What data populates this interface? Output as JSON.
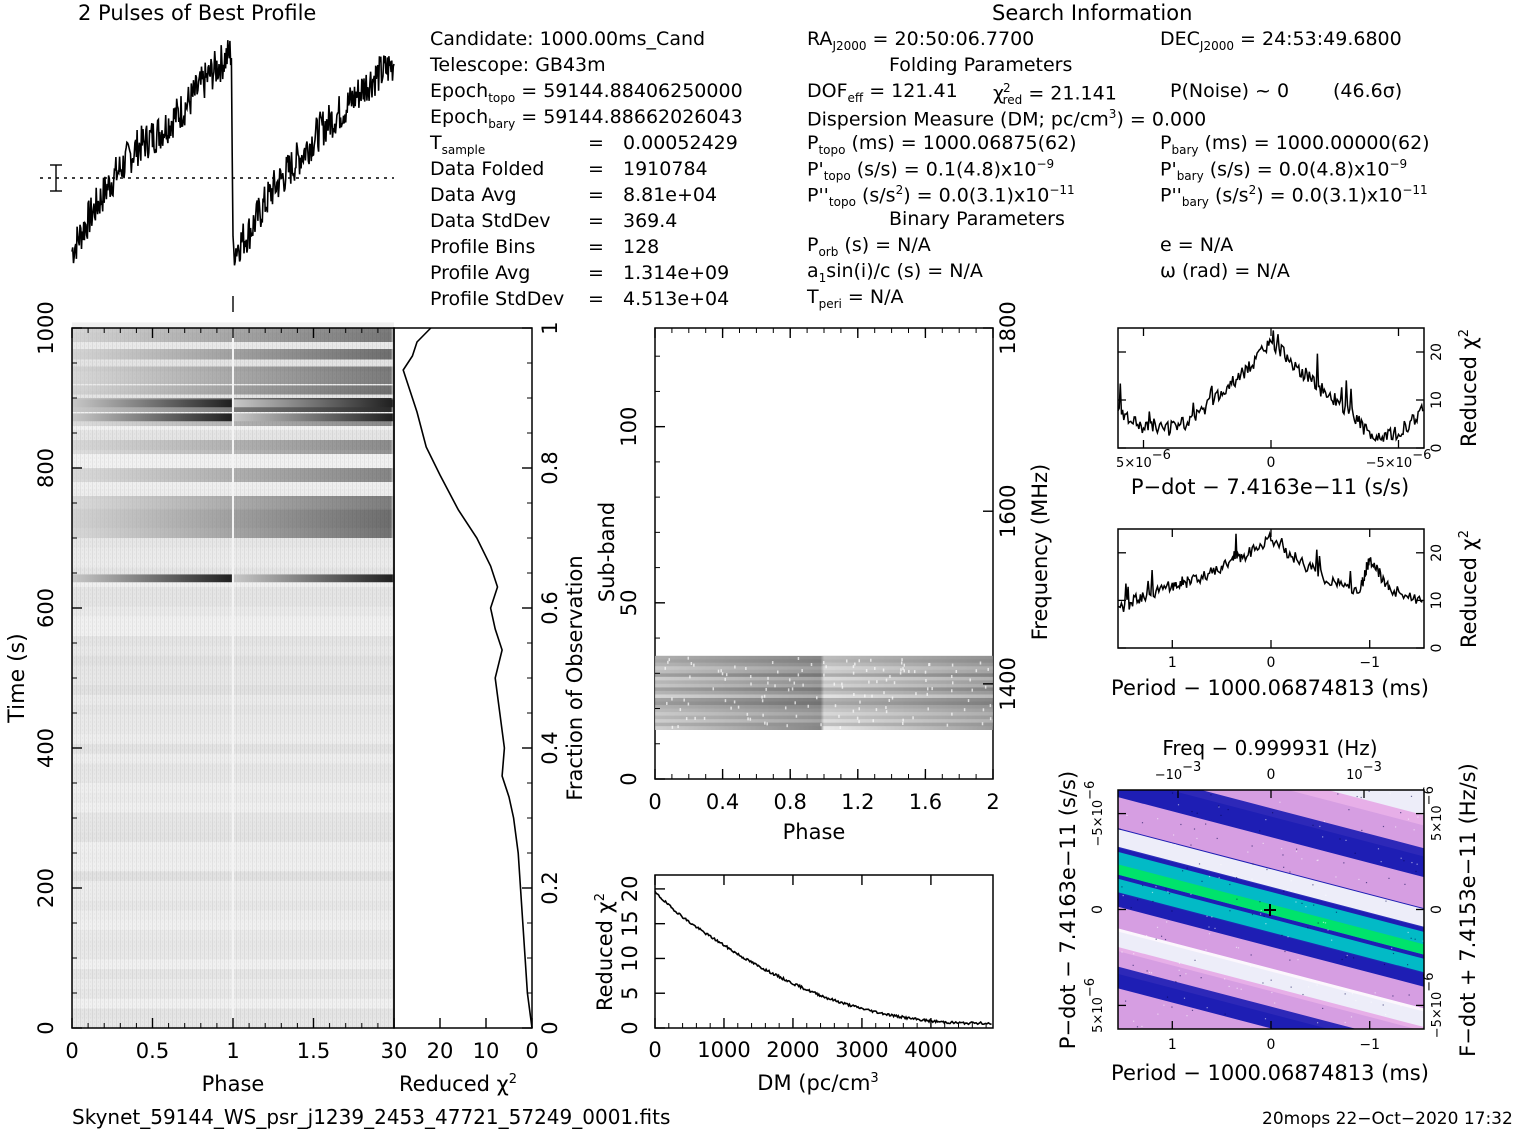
{
  "titles": {
    "profile_title": "2 Pulses of Best Profile",
    "search_info": "Search Information",
    "folding_params": "Folding Parameters",
    "binary_params": "Binary Parameters"
  },
  "candidate": {
    "candidate": "Candidate:  1000.00ms_Cand",
    "telescope": "Telescope:  GB43m",
    "epoch_topo_label": "Epoch",
    "epoch_topo_sub": "topo",
    "epoch_topo_val": " = 59144.88406250000",
    "epoch_bary_label": "Epoch",
    "epoch_bary_sub": "bary",
    "epoch_bary_val": " = 59144.88662026043",
    "rows": [
      {
        "label": "T",
        "sub": "sample",
        "eq": "=",
        "value": "0.00052429"
      },
      {
        "label": "Data Folded",
        "sub": "",
        "eq": "=",
        "value": "1910784"
      },
      {
        "label": "Data Avg",
        "sub": "",
        "eq": "=",
        "value": "8.81e+04"
      },
      {
        "label": "Data StdDev",
        "sub": "",
        "eq": "=",
        "value": "369.4"
      },
      {
        "label": "Profile Bins",
        "sub": "",
        "eq": "=",
        "value": "128"
      },
      {
        "label": "Profile Avg",
        "sub": "",
        "eq": "=",
        "value": "1.314e+09"
      },
      {
        "label": "Profile StdDev",
        "sub": "",
        "eq": "=",
        "value": "4.513e+04"
      }
    ]
  },
  "search": {
    "ra": "RA",
    "ra_sub": "J2000",
    "ra_val": " = 20:50:06.7700",
    "dec": "DEC",
    "dec_sub": "J2000",
    "dec_val": " = 24:53:49.6800",
    "dof": "DOF",
    "dof_sub": "eff",
    "dof_val": " = 121.41",
    "chi": "χ",
    "chi_sup": "2",
    "chi_sub": "red",
    "chi_val": " = 21.141",
    "pnoise": "P(Noise) ~ 0",
    "sigma": "(46.6σ)",
    "dm_line": "Dispersion Measure (DM; pc/cm",
    "dm_sup": "3",
    "dm_val": ") = 0.000",
    "ptopo": "P",
    "ptopo_sub": "topo",
    "ptopo_val": " (ms) =  1000.06875(62)",
    "pbary": "P",
    "pbary_sub": "bary",
    "pbary_val": " (ms) =  1000.00000(62)",
    "pdtopo": "P'",
    "pdtopo_sub": "topo",
    "pdtopo_val": " (s/s) =  0.1(4.8)x10",
    "pdtopo_exp": "−9",
    "pdbary": "P'",
    "pdbary_sub": "bary",
    "pdbary_val": " (s/s) = 0.0(4.8)x10",
    "pdbary_exp": "−9",
    "pddtopo": "P''",
    "pddtopo_sub": "topo",
    "pddtopo_val": " (s/s",
    "pddtopo_sup": "2",
    "pddtopo_val2": ") = 0.0(3.1)x10",
    "pddtopo_exp": "−11",
    "pddbary": "P''",
    "pddbary_sub": "bary",
    "pddbary_val": " (s/s",
    "pddbary_sup": "2",
    "pddbary_val2": ") = 0.0(3.1)x10",
    "pddbary_exp": "−11",
    "porb": "P",
    "porb_sub": "orb",
    "porb_val": " (s) = N/A",
    "ecc": "e = N/A",
    "a1": "a",
    "a1_sub": "1",
    "a1_val": "sin(i)/c (s) = N/A",
    "omega": "ω (rad) = N/A",
    "tperi": "T",
    "tperi_sub": "peri",
    "tperi_val": " = N/A"
  },
  "footer": {
    "filename": "Skynet_59144_WS_psr_j1239_2453_47721_57249_0001.fits",
    "stamp": "20mops 22−Oct−2020 17:32"
  },
  "chart_data": [
    {
      "id": "profile",
      "type": "line",
      "title": "2 Pulses of Best Profile",
      "xlim": [
        0,
        2
      ],
      "shape": "sawtooth rising over each pulse, sharp drop at phase 1",
      "points": [
        [
          0.0,
          0.12
        ],
        [
          0.1,
          0.25
        ],
        [
          0.25,
          0.42
        ],
        [
          0.4,
          0.55
        ],
        [
          0.55,
          0.62
        ],
        [
          0.7,
          0.72
        ],
        [
          0.85,
          0.85
        ],
        [
          0.99,
          0.95
        ],
        [
          1.0,
          0.12
        ],
        [
          1.1,
          0.2
        ],
        [
          1.25,
          0.38
        ],
        [
          1.4,
          0.5
        ],
        [
          1.55,
          0.63
        ],
        [
          1.7,
          0.72
        ],
        [
          1.85,
          0.83
        ],
        [
          2.0,
          0.9
        ]
      ]
    },
    {
      "id": "time-phase",
      "type": "heatmap",
      "xlabel": "Phase",
      "ylabel": "Time (s)",
      "xlim": [
        0,
        2
      ],
      "ylim": [
        0,
        1000
      ],
      "x_ticks": [
        "0",
        "0.5",
        "1",
        "1.5"
      ],
      "y_ticks": [
        "0",
        "200",
        "400",
        "600",
        "800",
        "1000"
      ],
      "dark_bands_time": [
        640,
        870,
        890
      ]
    },
    {
      "id": "time-chi2",
      "type": "line",
      "xlabel": "Reduced χ",
      "xlabel_sup": "2",
      "ylabel": "Fraction of Observation",
      "xlim": [
        30,
        0
      ],
      "ylim": [
        0,
        1
      ],
      "x_ticks": [
        "30",
        "20",
        "10",
        "0"
      ],
      "y_ticks": [
        "0",
        "0.2",
        "0.4",
        "0.6",
        "0.8",
        "1"
      ],
      "points": [
        [
          0,
          0
        ],
        [
          1,
          0.05
        ],
        [
          1.5,
          0.1
        ],
        [
          2,
          0.15
        ],
        [
          2.5,
          0.2
        ],
        [
          3,
          0.25
        ],
        [
          4,
          0.3
        ],
        [
          5,
          0.33
        ],
        [
          6.5,
          0.36
        ],
        [
          6,
          0.4
        ],
        [
          7,
          0.45
        ],
        [
          8,
          0.5
        ],
        [
          6.5,
          0.54
        ],
        [
          8,
          0.57
        ],
        [
          9,
          0.6
        ],
        [
          7.5,
          0.63
        ],
        [
          9,
          0.66
        ],
        [
          12,
          0.7
        ],
        [
          16,
          0.74
        ],
        [
          20,
          0.79
        ],
        [
          23,
          0.83
        ],
        [
          25,
          0.88
        ],
        [
          27,
          0.92
        ],
        [
          28,
          0.94
        ],
        [
          26,
          0.96
        ],
        [
          25,
          0.98
        ],
        [
          22,
          1.0
        ]
      ]
    },
    {
      "id": "subband-phase",
      "type": "heatmap",
      "xlabel": "Phase",
      "ylabel": "Sub-band",
      "y2label": "Frequency (MHz)",
      "xlim": [
        0,
        2
      ],
      "ylim": [
        0,
        128
      ],
      "x_ticks": [
        "0",
        "0.4",
        "0.8",
        "1.2",
        "1.6",
        "2"
      ],
      "y_ticks": [
        "0",
        "50",
        "100"
      ],
      "y2_ticks": [
        "1400",
        "1600",
        "1800"
      ],
      "occupied_subbands": [
        15,
        35
      ]
    },
    {
      "id": "dm-chi2",
      "type": "line",
      "xlabel": "DM (pc/cm",
      "xlabel_sup": "3",
      "ylabel": "Reduced χ",
      "ylabel_sup": "2",
      "xlim": [
        0,
        4900
      ],
      "ylim": [
        0,
        22
      ],
      "x_ticks": [
        "0",
        "1000",
        "2000",
        "3000",
        "4000"
      ],
      "y_ticks": [
        "0",
        "5",
        "10",
        "15",
        "20"
      ],
      "x": [
        0,
        250,
        500,
        750,
        1000,
        1250,
        1500,
        1750,
        2000,
        2250,
        2500,
        2750,
        3000,
        3250,
        3500,
        3750,
        4000,
        4250,
        4500,
        4900
      ],
      "y": [
        19.5,
        17.2,
        15.2,
        13.5,
        11.9,
        10.3,
        8.9,
        7.6,
        6.4,
        5.3,
        4.3,
        3.5,
        2.8,
        2.2,
        1.7,
        1.3,
        1.0,
        0.8,
        0.7,
        0.7
      ]
    },
    {
      "id": "pdot-chi2",
      "type": "line",
      "xlabel": "P−dot − 7.4163e−11 (s/s)",
      "ylabel": "Reduced χ",
      "ylabel_sup": "2",
      "xlim": [
        6e-06,
        -6e-06
      ],
      "ylim": [
        0,
        25
      ],
      "x_ticks": [
        "5×10",
        "0",
        "−5×10"
      ],
      "x_tick_exp": "−6",
      "y_ticks": [
        "0",
        "10",
        "20"
      ],
      "x": [
        6e-06,
        5e-06,
        4e-06,
        3e-06,
        2e-06,
        1e-06,
        0,
        -1e-06,
        -2e-06,
        -3e-06,
        -4e-06,
        -5e-06,
        -6e-06
      ],
      "y": [
        8,
        4,
        4,
        6,
        11,
        16,
        22,
        17,
        12,
        8,
        2,
        3,
        8
      ]
    },
    {
      "id": "period-chi2",
      "type": "line",
      "xlabel": "Period − 1000.06874813 (ms)",
      "ylabel": "Reduced χ",
      "ylabel_sup": "2",
      "xlim": [
        1.55,
        -1.55
      ],
      "ylim": [
        0,
        25
      ],
      "x_ticks": [
        "1",
        "0",
        "−1"
      ],
      "y_ticks": [
        "0",
        "10",
        "20"
      ],
      "x": [
        1.55,
        1.3,
        1.0,
        0.8,
        0.5,
        0.3,
        0.0,
        -0.3,
        -0.6,
        -0.9,
        -1.0,
        -1.2,
        -1.55
      ],
      "y": [
        8,
        11,
        13,
        14,
        17,
        19,
        23,
        18,
        14,
        12,
        19,
        12,
        10
      ]
    },
    {
      "id": "p-pdot",
      "type": "heatmap",
      "title": "Freq − 0.999931 (Hz)",
      "xlabel": "Period − 1000.06874813 (ms)",
      "ylabel": "P−dot − 7.4163e−11 (s/s)",
      "y2label": "F−dot + 7.4153e−11 (Hz/s)",
      "x_ticks": [
        "1",
        "0",
        "−1"
      ],
      "top_ticks": [
        "−10",
        "0",
        "10"
      ],
      "top_tick_exp": "−3",
      "y_ticks": [
        "5×10",
        "0",
        "−5×10"
      ],
      "y_tick_exp": "−6",
      "y2_ticks": [
        "5×10",
        "0",
        "−5×10"
      ],
      "y2_tick_exp": "−6",
      "colors": [
        "#ffffff",
        "#e6a9e6",
        "#1e1eb4",
        "#00c8c8",
        "#00e664"
      ]
    }
  ]
}
